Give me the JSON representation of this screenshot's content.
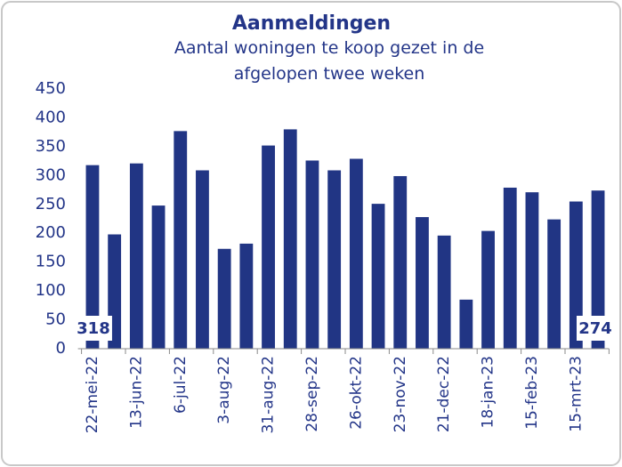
{
  "chart_data": {
    "type": "bar",
    "title": "Aanmeldingen",
    "subtitle": "Aantal woningen te koop gezet in de afgelopen twee weken",
    "categories": [
      "22-mei-22",
      null,
      "13-jun-22",
      null,
      "6-jul-22",
      null,
      "3-aug-22",
      null,
      "31-aug-22",
      null,
      "28-sep-22",
      null,
      "26-okt-22",
      null,
      "23-nov-22",
      null,
      "21-dec-22",
      null,
      "18-jan-23",
      null,
      "15-feb-23",
      null,
      "15-mrt-23",
      null
    ],
    "values": [
      318,
      198,
      321,
      248,
      377,
      309,
      173,
      182,
      352,
      380,
      326,
      309,
      329,
      251,
      299,
      228,
      196,
      85,
      204,
      279,
      271,
      224,
      255,
      274
    ],
    "color": "#213584",
    "ylim": [
      0,
      450
    ],
    "yticks": [
      0,
      50,
      100,
      150,
      200,
      250,
      300,
      350,
      400,
      450
    ],
    "grid": false,
    "data_labels": "first-last"
  }
}
